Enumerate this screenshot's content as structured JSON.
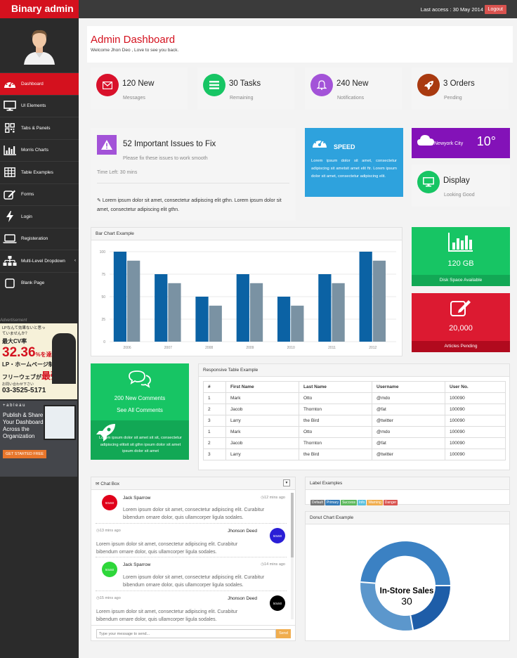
{
  "app": {
    "brand": "Binary admin",
    "last_access": "Last access : 30 May 2014",
    "logout": "Logout"
  },
  "sidebar": {
    "items": [
      {
        "label": "Dashboard",
        "icon": "dashboard-icon",
        "active": true
      },
      {
        "label": "UI Elements",
        "icon": "desktop-icon"
      },
      {
        "label": "Tabs & Panels",
        "icon": "qrcode-icon"
      },
      {
        "label": "Morris Charts",
        "icon": "bar-chart-icon"
      },
      {
        "label": "Table Examples",
        "icon": "table-icon"
      },
      {
        "label": "Forms",
        "icon": "edit-icon"
      },
      {
        "label": "Login",
        "icon": "bolt-icon"
      },
      {
        "label": "Registeration",
        "icon": "laptop-icon"
      },
      {
        "label": "Multi-Level Dropdown",
        "icon": "sitemap-icon"
      },
      {
        "label": "Blank Page",
        "icon": "square-icon"
      }
    ],
    "advertisement": "Advertisement",
    "ad1": {
      "l1": "LPなんて効果ないと思っていませんか？",
      "l2": "最大CV率",
      "big": "32.36",
      "l3": "%を達成!!",
      "l4": "LP・ホームページ制作は",
      "l5": "フリーウェブが",
      "big2": "最強",
      "l6": "お問い合わせ下さい",
      "phone": "03-3525-5171"
    },
    "ad2": {
      "brand": "+ a b l e a u",
      "line1": "Publish & Share",
      "line2": "Your Dashboards",
      "line3": "Across the",
      "line4": "Organization",
      "cta": "GET STARTED FREE"
    }
  },
  "header": {
    "title": "Admin Dashboard",
    "subtitle": "Welcome Jhon Deo , Love to see you back."
  },
  "stats": [
    {
      "title": "120 New",
      "sub": "Messages",
      "color": "#d9112b",
      "icon": "envelope-icon"
    },
    {
      "title": "30 Tasks",
      "sub": "Remaining",
      "color": "#17c564",
      "icon": "list-icon"
    },
    {
      "title": "240 New",
      "sub": "Notifications",
      "color": "#a353d8",
      "icon": "bell-icon"
    },
    {
      "title": "3 Orders",
      "sub": "Pending",
      "color": "#a93a10",
      "icon": "rocket-icon"
    }
  ],
  "issues": {
    "title": "52 Important Issues to Fix",
    "sub": "Please fix these issues to work smooth",
    "time": "Time Left: 30 mins",
    "text": "Lorem ipsum dolor sit amet, consectetur adipiscing elit gthn. Lorem ipsum dolor sit amet, consectetur adipiscing elit gthn."
  },
  "speed": {
    "title": "SPEED",
    "text": "Lorem ipsum dolor sit amet, consectetur adipiscing sit ametsit amet elit ftr. Lorem ipsum dolor sit amet, consectetur adipiscing elit."
  },
  "weather": {
    "city": "Newyork City",
    "temp": "10°"
  },
  "display": {
    "title": "Display",
    "sub": "Looking Good"
  },
  "bar_chart": {
    "title": "Bar Chart Example"
  },
  "chart_data": {
    "type": "bar",
    "categories": [
      "2006",
      "2007",
      "2008",
      "2009",
      "2010",
      "2011",
      "2012"
    ],
    "series": [
      {
        "values": [
          100,
          75,
          50,
          75,
          50,
          75,
          100
        ],
        "color": "#0b62a4"
      },
      {
        "values": [
          90,
          65,
          40,
          65,
          40,
          65,
          90
        ],
        "color": "#7a92a3"
      }
    ],
    "yticks": [
      "0",
      "25",
      "50",
      "75",
      "100"
    ],
    "ylim": [
      0,
      100
    ]
  },
  "disk": {
    "value": "120 GB",
    "label": "Disk Space Available"
  },
  "articles": {
    "value": "20,000",
    "label": "Articles Pending"
  },
  "comments": {
    "l1": "200 New Comments",
    "l2": "See All Comments",
    "text": "Lorem ipsum dolor sit amet sit sit, consectetur adipiscing elitsit sit gthn ipsum dolor sit amet ipsum dolor sit amet"
  },
  "table": {
    "title": "Responsive Table Example",
    "headers": [
      "#",
      "First Name",
      "Last Name",
      "Username",
      "User No."
    ],
    "rows": [
      [
        "1",
        "Mark",
        "Otto",
        "@mdo",
        "100090"
      ],
      [
        "2",
        "Jacob",
        "Thornton",
        "@fat",
        "100090"
      ],
      [
        "3",
        "Larry",
        "the Bird",
        "@twitter",
        "100090"
      ],
      [
        "1",
        "Mark",
        "Otto",
        "@mdo",
        "100090"
      ],
      [
        "2",
        "Jacob",
        "Thornton",
        "@fat",
        "100090"
      ],
      [
        "3",
        "Larry",
        "the Bird",
        "@twitter",
        "100090"
      ]
    ]
  },
  "chat": {
    "title": "Chat Box",
    "messages": [
      {
        "name": "Jack Sparrow",
        "time": "12 mins ago",
        "text": "Lorem ipsum dolor sit amet, consectetur adipiscing elit. Curabitur bibendum ornare dolor, quis ullamcorper ligula sodales.",
        "avatar": "50x50",
        "color": "#e0001a"
      },
      {
        "name": "Jhonson Deed",
        "time": "13 mins ago",
        "text": "Lorem ipsum dolor sit amet, consectetur adipiscing elit. Curabitur bibendum ornare dolor, quis ullamcorper ligula sodales.",
        "avatar": "50x50",
        "color": "#2a1ed6"
      },
      {
        "name": "Jack Sparrow",
        "time": "14 mins ago",
        "text": "Lorem ipsum dolor sit amet, consectetur adipiscing elit. Curabitur bibendum ornare dolor, quis ullamcorper ligula sodales.",
        "avatar": "50x50",
        "color": "#2ed73a"
      },
      {
        "name": "Jhonson Deed",
        "time": "15 mins ago",
        "text": "Lorem ipsum dolor sit amet, consectetur adipiscing elit. Curabitur bibendum ornare dolor, quis ullamcorper ligula sodales.",
        "avatar": "50x50",
        "color": "#000000"
      }
    ],
    "placeholder": "Type your message to send...",
    "send": "Send"
  },
  "labels": {
    "title": "Label Examples",
    "items": [
      {
        "text": "Default",
        "color": "#777777"
      },
      {
        "text": "Primary",
        "color": "#337ab7"
      },
      {
        "text": "Success",
        "color": "#5cb85c"
      },
      {
        "text": "Info",
        "color": "#5bc0de"
      },
      {
        "text": "Warning",
        "color": "#f0ad4e"
      },
      {
        "text": "Danger",
        "color": "#d9534f"
      }
    ]
  },
  "donut": {
    "title": "Donut Chart Example",
    "center_label": "In-Store Sales",
    "center_value": "30"
  }
}
